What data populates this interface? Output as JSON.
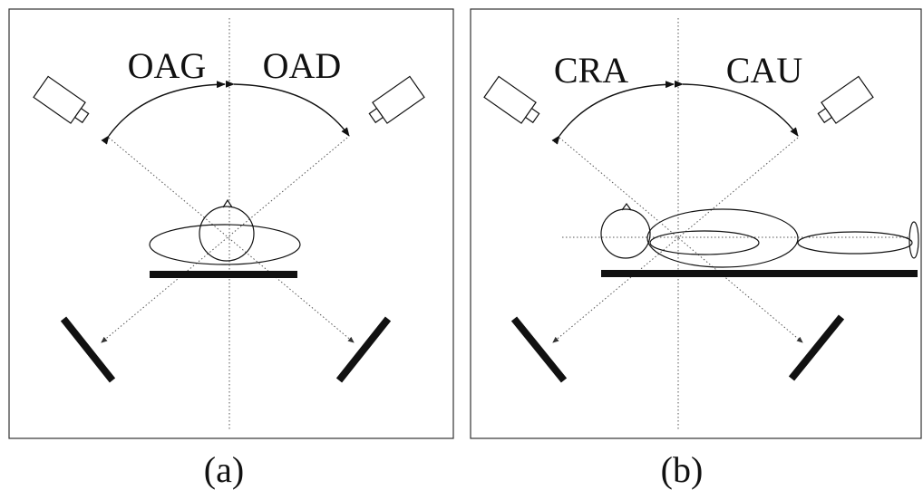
{
  "panels": [
    {
      "labels": [
        "OAG",
        "OAD"
      ],
      "caption": "(a)"
    },
    {
      "labels": [
        "CRA",
        "CAU"
      ],
      "caption": "(b)"
    }
  ]
}
